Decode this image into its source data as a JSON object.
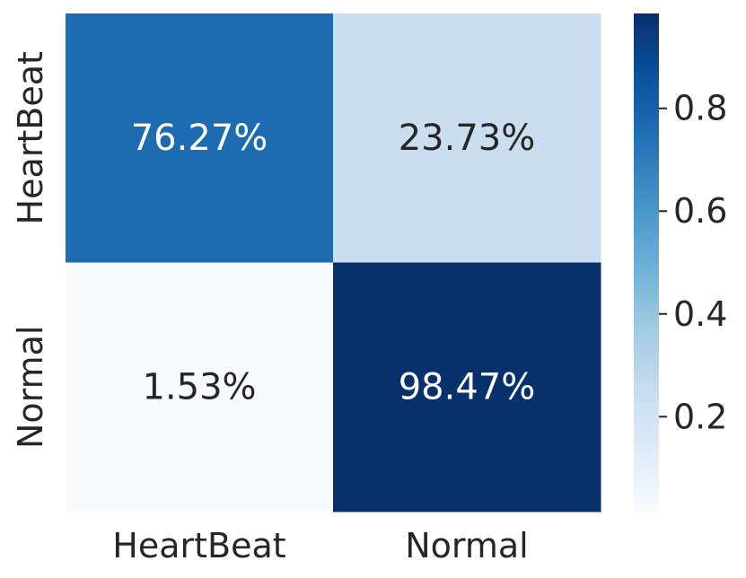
{
  "chart_data": {
    "type": "heatmap",
    "colormap": "Blues",
    "x_categories": [
      "HeartBeat",
      "Normal"
    ],
    "y_categories": [
      "HeartBeat",
      "Normal"
    ],
    "values": [
      [
        0.7627,
        0.2373
      ],
      [
        0.0153,
        0.9847
      ]
    ],
    "cell_labels": [
      [
        "76.27%",
        "23.73%"
      ],
      [
        "1.53%",
        "98.47%"
      ]
    ],
    "colorbar": {
      "range": [
        0.0153,
        0.9847
      ],
      "ticks": [
        0.2,
        0.4,
        0.6,
        0.8
      ],
      "tick_labels": [
        "0.2",
        "0.4",
        "0.6",
        "0.8"
      ]
    },
    "colors": {
      "text_dark": "#262626",
      "text_light": "#ffffff"
    }
  }
}
